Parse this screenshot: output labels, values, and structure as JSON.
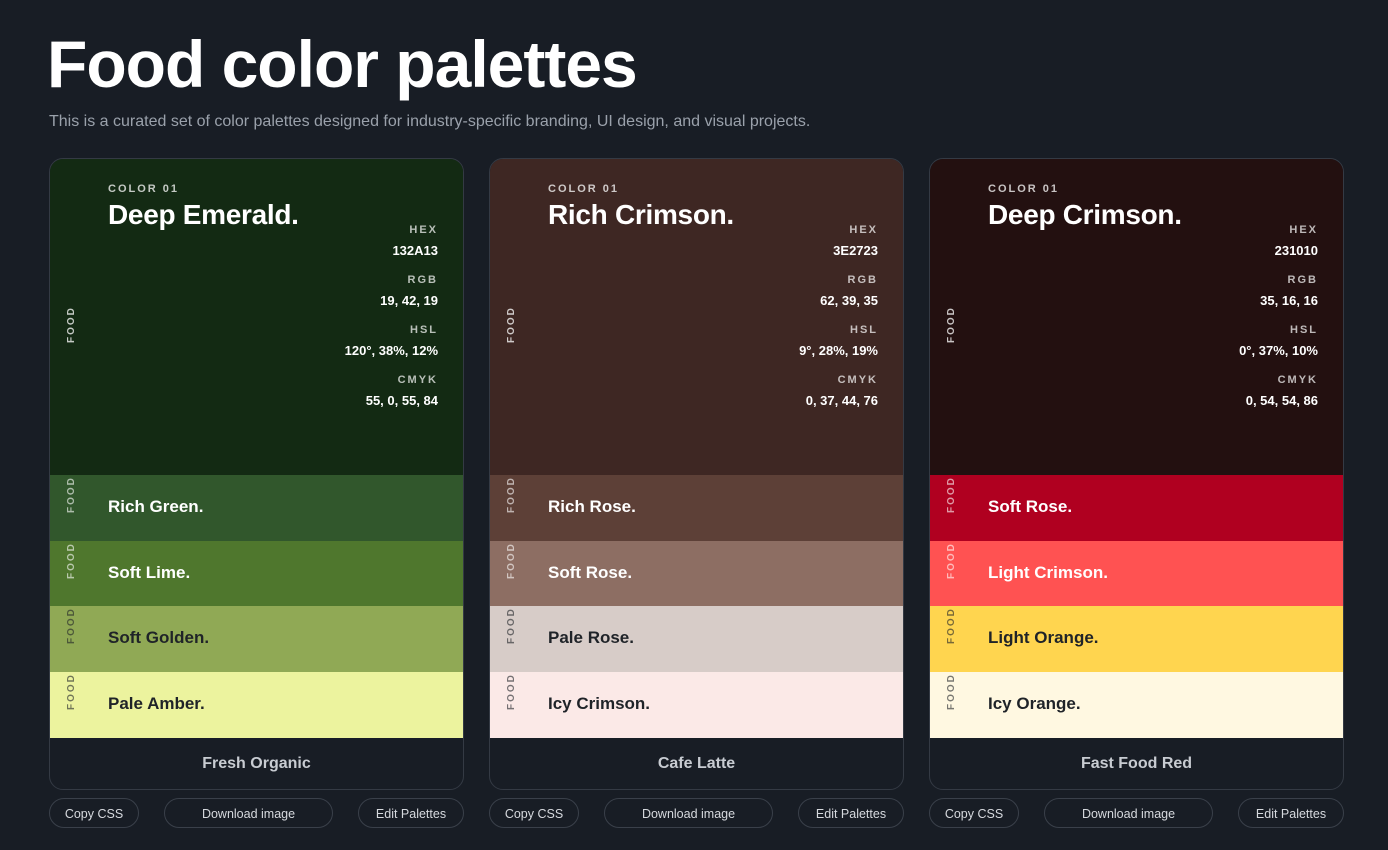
{
  "header": {
    "title": "Food color palettes",
    "subtitle": "This is a curated set of color palettes designed for industry-specific branding, UI design, and visual projects."
  },
  "color_label": "COLOR 01",
  "tag": "FOOD",
  "field_labels": [
    "HEX",
    "RGB",
    "HSL",
    "CMYK"
  ],
  "buttons": [
    "Copy CSS",
    "Download image",
    "Edit Palettes"
  ],
  "palettes": [
    {
      "name": "Fresh Organic",
      "main": {
        "name": "Deep Emerald.",
        "color": "#132A13",
        "values": [
          "132A13",
          "19, 42, 19",
          "120°, 38%, 12%",
          "55, 0, 55, 84"
        ]
      },
      "swatches": [
        {
          "name": "Rich Green.",
          "color": "#31572C"
        },
        {
          "name": "Soft Lime.",
          "color": "#4F772D"
        },
        {
          "name": "Soft Golden.",
          "color": "#90A955"
        },
        {
          "name": "Pale Amber.",
          "color": "#ECF39E"
        }
      ]
    },
    {
      "name": "Cafe Latte",
      "main": {
        "name": "Rich Crimson.",
        "color": "#3E2723",
        "values": [
          "3E2723",
          "62, 39, 35",
          "9°, 28%, 19%",
          "0, 37, 44, 76"
        ]
      },
      "swatches": [
        {
          "name": "Rich Rose.",
          "color": "#5D4037"
        },
        {
          "name": "Soft Rose.",
          "color": "#8D6E63"
        },
        {
          "name": "Pale Rose.",
          "color": "#D7CCC8"
        },
        {
          "name": "Icy Crimson.",
          "color": "#FBE9E7"
        }
      ]
    },
    {
      "name": "Fast Food Red",
      "main": {
        "name": "Deep Crimson.",
        "color": "#231010",
        "values": [
          "231010",
          "35, 16, 16",
          "0°, 37%, 10%",
          "0, 54, 54, 86"
        ]
      },
      "swatches": [
        {
          "name": "Soft Rose.",
          "color": "#B00020"
        },
        {
          "name": "Light Crimson.",
          "color": "#FF5252"
        },
        {
          "name": "Light Orange.",
          "color": "#FFD54F"
        },
        {
          "name": "Icy Orange.",
          "color": "#FFF8E1"
        }
      ]
    }
  ]
}
